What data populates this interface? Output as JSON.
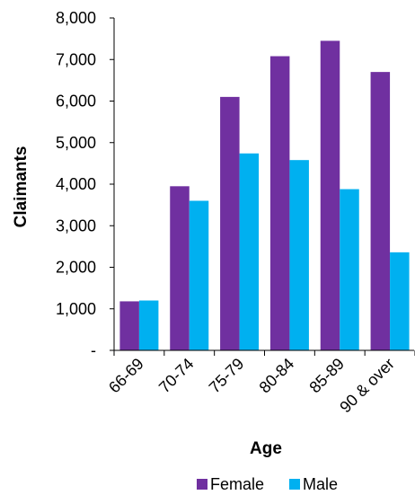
{
  "chart_data": {
    "type": "bar",
    "title": "",
    "xlabel": "Age",
    "ylabel": "Claimants",
    "categories": [
      "66-69",
      "70-74",
      "75-79",
      "80-84",
      "85-89",
      "90 & over"
    ],
    "series": [
      {
        "name": "Female",
        "color": "#7030A0",
        "values": [
          1180,
          3950,
          6100,
          7080,
          7450,
          6700
        ]
      },
      {
        "name": "Male",
        "color": "#00B0F0",
        "values": [
          1200,
          3600,
          4740,
          4580,
          3880,
          2360
        ]
      }
    ],
    "ylim": [
      0,
      8000
    ],
    "yticks": [
      0,
      1000,
      2000,
      3000,
      4000,
      5000,
      6000,
      7000,
      8000
    ],
    "ytick_labels": [
      "-",
      "1,000",
      "2,000",
      "3,000",
      "4,000",
      "5,000",
      "6,000",
      "7,000",
      "8,000"
    ],
    "grid": false,
    "legend_position": "bottom"
  }
}
